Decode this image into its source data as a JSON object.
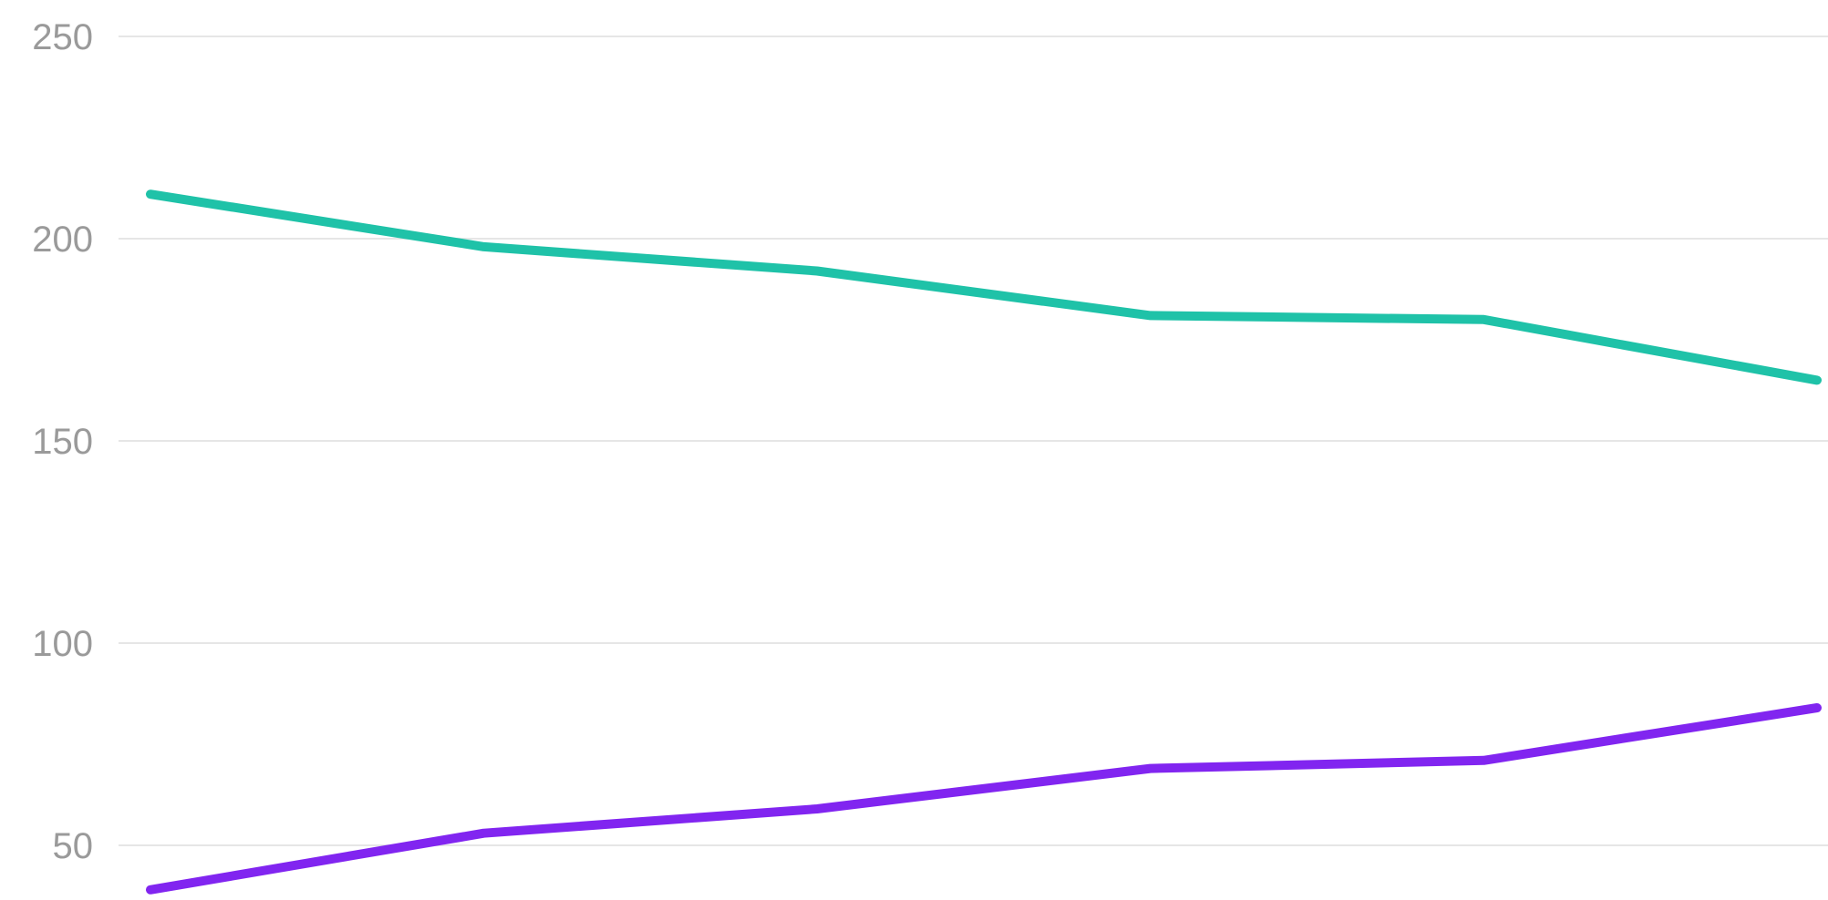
{
  "chart_data": {
    "type": "line",
    "title": "",
    "xlabel": "",
    "ylabel": "",
    "x": [
      1,
      2,
      3,
      4,
      5,
      6
    ],
    "xlim": [
      1,
      6
    ],
    "ylim": [
      40,
      250
    ],
    "yticks": [
      "50",
      "100",
      "150",
      "200",
      "250"
    ],
    "grid": true,
    "legend": "none",
    "series": [
      {
        "values": [
          211,
          198,
          192,
          181,
          180,
          165
        ],
        "color": "#1fc2a8"
      },
      {
        "values": [
          39,
          53,
          59,
          69,
          71,
          84
        ],
        "color": "#8125f0"
      }
    ],
    "colors": {
      "grid": "#e6e6e6",
      "tick_text": "#9a9a9a",
      "background": "#ffffff"
    }
  }
}
